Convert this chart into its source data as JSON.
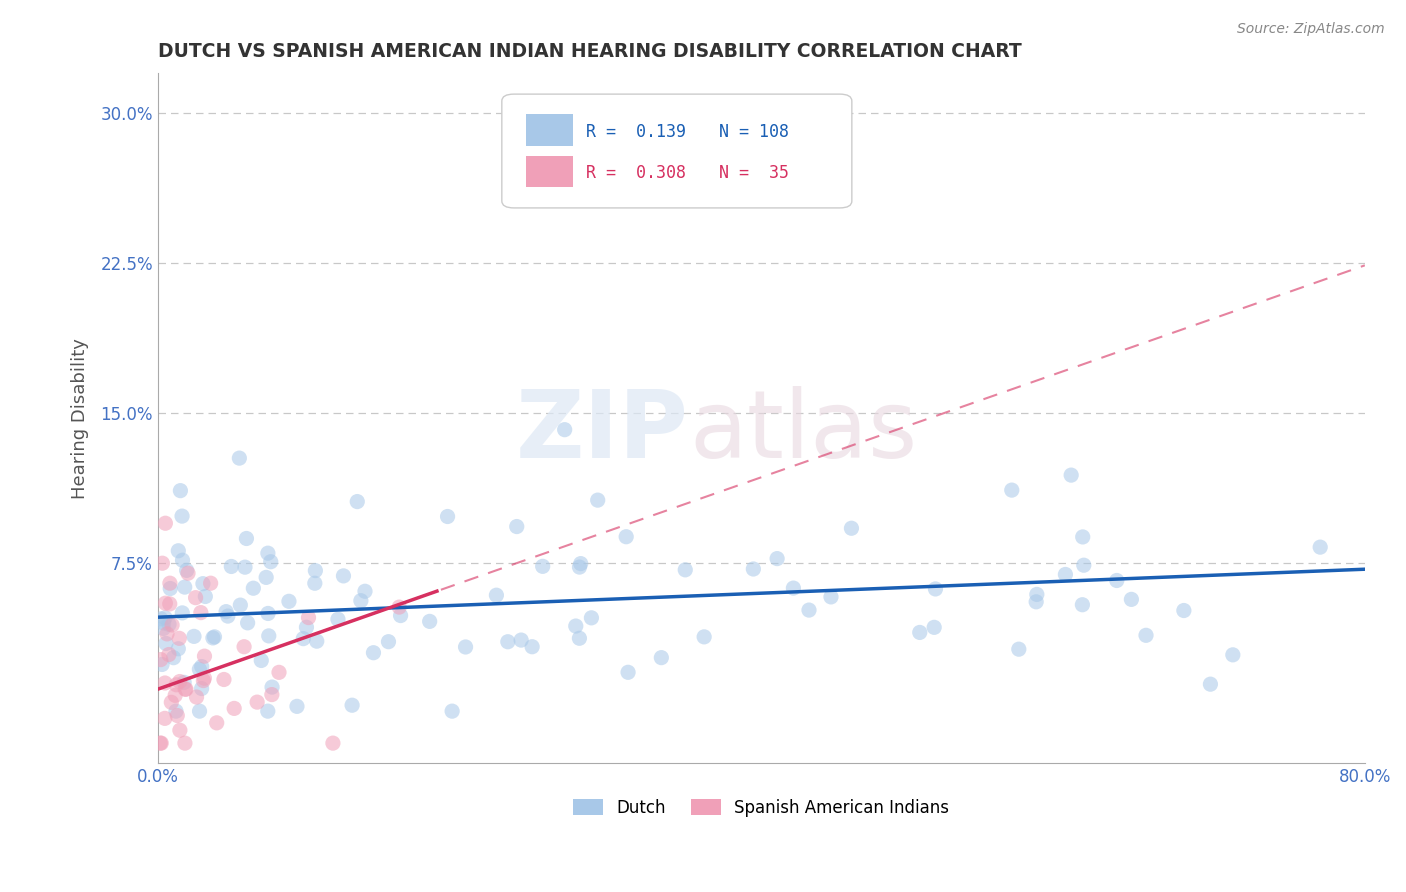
{
  "title": "DUTCH VS SPANISH AMERICAN INDIAN HEARING DISABILITY CORRELATION CHART",
  "source": "Source: ZipAtlas.com",
  "xlabel": "",
  "ylabel": "Hearing Disability",
  "xlim": [
    0.0,
    0.8
  ],
  "ylim": [
    -0.025,
    0.32
  ],
  "xticks": [
    0.0,
    0.1,
    0.2,
    0.3,
    0.4,
    0.5,
    0.6,
    0.7,
    0.8
  ],
  "xticklabels": [
    "0.0%",
    "",
    "",
    "",
    "",
    "",
    "",
    "",
    "80.0%"
  ],
  "yticks": [
    0.075,
    0.15,
    0.225,
    0.3
  ],
  "yticklabels": [
    "7.5%",
    "15.0%",
    "22.5%",
    "30.0%"
  ],
  "dutch_color": "#a8c8e8",
  "spanish_color": "#f0a0b8",
  "dutch_line_color": "#1a5fb4",
  "spanish_line_color": "#d63060",
  "R_dutch": 0.139,
  "N_dutch": 108,
  "R_spanish": 0.308,
  "N_spanish": 35,
  "watermark_zip": "ZIP",
  "watermark_atlas": "atlas",
  "background_color": "#ffffff",
  "grid_color": "#c8c8c8",
  "title_color": "#333333",
  "axis_label_color": "#555555",
  "tick_color": "#4472c4",
  "legend_label_dutch": "Dutch",
  "legend_label_spanish": "Spanish American Indians",
  "dutch_intercept": 0.048,
  "dutch_slope": 0.03,
  "spanish_intercept": 0.012,
  "spanish_slope": 0.265,
  "spanish_line_x_end": 0.185,
  "marker_size": 120,
  "marker_alpha": 0.55
}
